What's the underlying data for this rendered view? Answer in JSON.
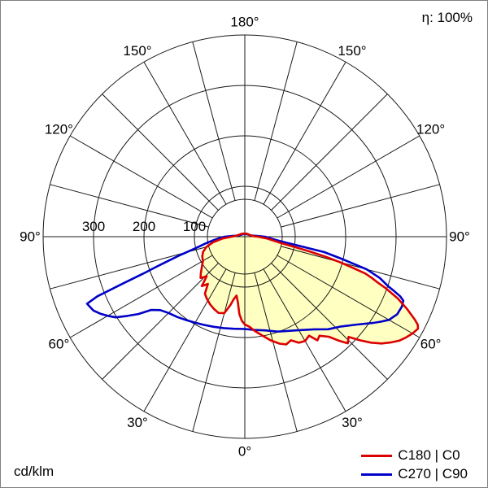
{
  "header": {
    "efficiency": "η: 100%"
  },
  "footer": {
    "unit": "cd/klm"
  },
  "chart_data": {
    "type": "polar",
    "subtype": "luminous-intensity-distribution",
    "unit": "cd/klm",
    "radial_ticks": [
      {
        "value": 100,
        "label": "100"
      },
      {
        "value": 200,
        "label": "200"
      },
      {
        "value": 300,
        "label": "300"
      }
    ],
    "radial_max": 400,
    "angle_step_deg": 15,
    "angle_labels": [
      {
        "value": 0,
        "label": "0°"
      },
      {
        "value": 30,
        "label": "30°"
      },
      {
        "value": 60,
        "label": "60°"
      },
      {
        "value": 90,
        "label": "90°"
      },
      {
        "value": 120,
        "label": "120°"
      },
      {
        "value": 150,
        "label": "150°"
      },
      {
        "value": 180,
        "label": "180°"
      }
    ],
    "grid_color": "#1a1a1a",
    "fill_color": "#ffffc2",
    "series": [
      {
        "name": "C180 | C0",
        "left_plane": "C180",
        "right_plane": "C0",
        "color": "#dc0000",
        "filled": true,
        "points": [
          [
            -180,
            6
          ],
          [
            -150,
            7
          ],
          [
            -120,
            10
          ],
          [
            -105,
            13
          ],
          [
            -97,
            17
          ],
          [
            -92,
            22
          ],
          [
            -90,
            26
          ],
          [
            -85,
            45
          ],
          [
            -80,
            64
          ],
          [
            -75,
            79
          ],
          [
            -70,
            88
          ],
          [
            -65,
            93
          ],
          [
            -60,
            96
          ],
          [
            -55,
            104
          ],
          [
            -50,
            114
          ],
          [
            -47,
            120
          ],
          [
            -44,
            109
          ],
          [
            -41,
            130
          ],
          [
            -38,
            119
          ],
          [
            -35,
            138
          ],
          [
            -31,
            145
          ],
          [
            -27,
            151
          ],
          [
            -23,
            156
          ],
          [
            -19,
            160
          ],
          [
            -15,
            157
          ],
          [
            -12,
            139
          ],
          [
            -10,
            126
          ],
          [
            -8,
            118
          ],
          [
            -6,
            131
          ],
          [
            -4,
            154
          ],
          [
            -2,
            167
          ],
          [
            0,
            174
          ],
          [
            3,
            179
          ],
          [
            6,
            188
          ],
          [
            10,
            199
          ],
          [
            14,
            212
          ],
          [
            18,
            223
          ],
          [
            21,
            229
          ],
          [
            24,
            225
          ],
          [
            27,
            236
          ],
          [
            30,
            239
          ],
          [
            33,
            234
          ],
          [
            35,
            251
          ],
          [
            37,
            246
          ],
          [
            40,
            259
          ],
          [
            42,
            277
          ],
          [
            44,
            294
          ],
          [
            46,
            286
          ],
          [
            48,
            307
          ],
          [
            50,
            327
          ],
          [
            52,
            344
          ],
          [
            54,
            357
          ],
          [
            56,
            369
          ],
          [
            58,
            377
          ],
          [
            60,
            384
          ],
          [
            62,
            389
          ],
          [
            63,
            385
          ],
          [
            64,
            375
          ],
          [
            66,
            352
          ],
          [
            68,
            327
          ],
          [
            70,
            296
          ],
          [
            71,
            278
          ],
          [
            72,
            265
          ],
          [
            73,
            250
          ],
          [
            74,
            221
          ],
          [
            75,
            195
          ],
          [
            76,
            166
          ],
          [
            77,
            136
          ],
          [
            78,
            110
          ],
          [
            80,
            73
          ],
          [
            82,
            59
          ],
          [
            85,
            45
          ],
          [
            88,
            32
          ],
          [
            90,
            26
          ],
          [
            93,
            18
          ],
          [
            98,
            14
          ],
          [
            105,
            11
          ],
          [
            120,
            9
          ],
          [
            150,
            7
          ],
          [
            180,
            6
          ]
        ]
      },
      {
        "name": "C270 | C90",
        "left_plane": "C270",
        "right_plane": "C90",
        "color": "#0000c8",
        "filled": false,
        "points": [
          [
            -180,
            5
          ],
          [
            -150,
            6
          ],
          [
            -120,
            8
          ],
          [
            -105,
            11
          ],
          [
            -98,
            15
          ],
          [
            -94,
            24
          ],
          [
            -90,
            40
          ],
          [
            -86,
            53
          ],
          [
            -83,
            65
          ],
          [
            -80,
            80
          ],
          [
            -78,
            92
          ],
          [
            -76,
            108
          ],
          [
            -74,
            135
          ],
          [
            -72,
            168
          ],
          [
            -71,
            190
          ],
          [
            -70,
            215
          ],
          [
            -69,
            258
          ],
          [
            -68,
            315
          ],
          [
            -67,
            340
          ],
          [
            -66,
            338
          ],
          [
            -64,
            334
          ],
          [
            -62,
            325
          ],
          [
            -60,
            314
          ],
          [
            -58,
            302
          ],
          [
            -56,
            281
          ],
          [
            -54,
            261
          ],
          [
            -52,
            236
          ],
          [
            -49,
            222
          ],
          [
            -45,
            214
          ],
          [
            -40,
            208
          ],
          [
            -35,
            202
          ],
          [
            -30,
            197
          ],
          [
            -25,
            193
          ],
          [
            -19,
            189
          ],
          [
            -13,
            186
          ],
          [
            -7,
            184
          ],
          [
            0,
            183
          ],
          [
            6,
            186
          ],
          [
            12,
            190
          ],
          [
            19,
            199
          ],
          [
            25,
            206
          ],
          [
            31,
            216
          ],
          [
            37,
            230
          ],
          [
            42,
            247
          ],
          [
            47,
            261
          ],
          [
            52,
            283
          ],
          [
            56,
            306
          ],
          [
            58,
            318
          ],
          [
            60,
            330
          ],
          [
            63,
            339
          ],
          [
            66,
            341
          ],
          [
            68,
            339
          ],
          [
            69,
            330
          ],
          [
            70,
            315
          ],
          [
            71,
            300
          ],
          [
            73,
            280
          ],
          [
            75,
            250
          ],
          [
            77,
            200
          ],
          [
            79,
            160
          ],
          [
            80,
            120
          ],
          [
            82,
            80
          ],
          [
            84,
            62
          ],
          [
            86,
            52
          ],
          [
            90,
            40
          ],
          [
            94,
            24
          ],
          [
            98,
            15
          ],
          [
            105,
            11
          ],
          [
            120,
            8
          ],
          [
            150,
            6
          ],
          [
            180,
            5
          ]
        ]
      }
    ]
  }
}
